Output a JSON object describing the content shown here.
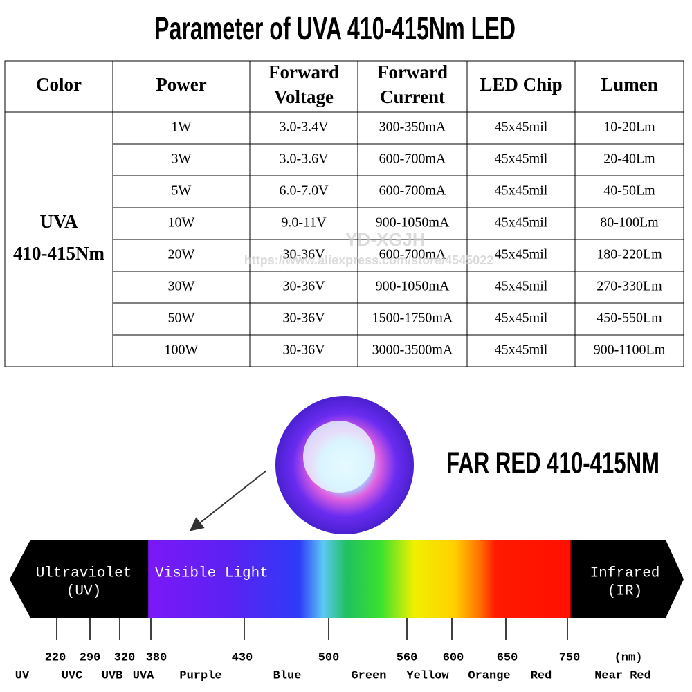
{
  "title": "Parameter of UVA  410-415Nm LED",
  "table": {
    "headers": [
      [
        "Color"
      ],
      [
        "Power"
      ],
      [
        "Forward",
        "Voltage"
      ],
      [
        "Forward",
        "Current"
      ],
      [
        "LED Chip"
      ],
      [
        "Lumen"
      ]
    ],
    "group": [
      "UVA",
      "410-415Nm"
    ],
    "rows": [
      [
        "1W",
        "3.0-3.4V",
        "300-350mA",
        "45x45mil",
        "10-20Lm"
      ],
      [
        "3W",
        "3.0-3.6V",
        "600-700mA",
        "45x45mil",
        "20-40Lm"
      ],
      [
        "5W",
        "6.0-7.0V",
        "600-700mA",
        "45x45mil",
        "40-50Lm"
      ],
      [
        "10W",
        "9.0-11V",
        "900-1050mA",
        "45x45mil",
        "80-100Lm"
      ],
      [
        "20W",
        "30-36V",
        "600-700mA",
        "45x45mil",
        "180-220Lm"
      ],
      [
        "30W",
        "30-36V",
        "900-1050mA",
        "45x45mil",
        "270-330Lm"
      ],
      [
        "50W",
        "30-36V",
        "1500-1750mA",
        "45x45mil",
        "450-550Lm"
      ],
      [
        "100W",
        "30-36V",
        "3000-3500mA",
        "45x45mil",
        "900-1100Lm"
      ]
    ]
  },
  "watermark": "YD-XGJH",
  "url": "https://www.aliexpress.com/store/4545022",
  "led_label": "FAR RED 410-415NM",
  "spectrum": {
    "left": [
      "Ultraviolet",
      "(UV)"
    ],
    "visible": "Visible Light",
    "right": [
      "Infrared",
      "(IR)"
    ],
    "ticks": [
      "220",
      "290",
      "320",
      "380",
      "430",
      "500",
      "560",
      "600",
      "650",
      "750"
    ],
    "unit": "(nm)",
    "bands": [
      "UV",
      "UVC",
      "UVB",
      "UVA",
      "Purple",
      "Blue",
      "Green",
      "Yellow",
      "Orange",
      "Red",
      "Near Red"
    ]
  }
}
